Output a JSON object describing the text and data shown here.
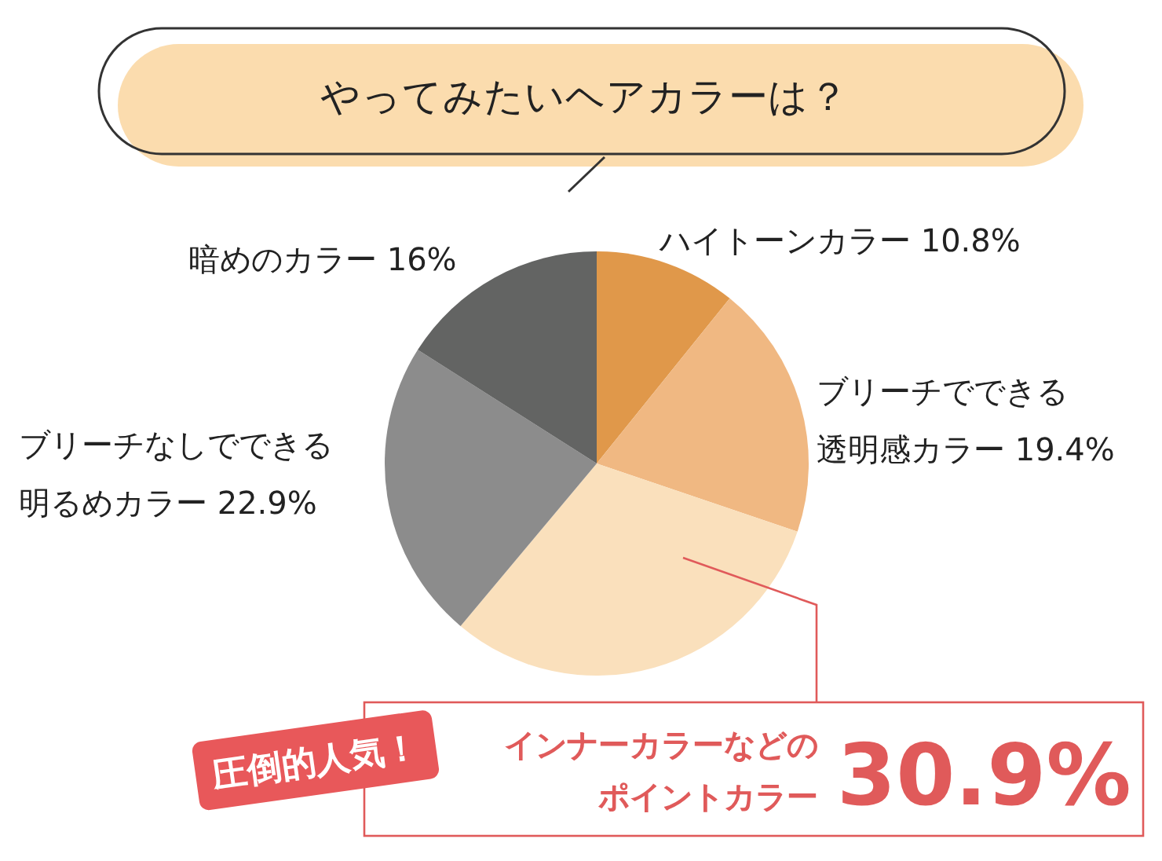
{
  "chart_data": {
    "type": "pie",
    "title": "やってみたいヘアカラーは？",
    "categories": [
      "ハイトーンカラー",
      "ブリーチでできる透明感カラー",
      "インナーカラーなどのポイントカラー",
      "ブリーチなしでできる明るめカラー",
      "暗めのカラー"
    ],
    "values": [
      10.8,
      19.4,
      30.9,
      22.9,
      16
    ],
    "colors": [
      "#e0984a",
      "#f0b882",
      "#fae0bc",
      "#8c8c8c",
      "#636463"
    ],
    "value_labels": [
      "10.8%",
      "19.4%",
      "30.9%",
      "22.9%",
      "16%"
    ],
    "annotations": [
      "圧倒的人気！"
    ]
  }
}
